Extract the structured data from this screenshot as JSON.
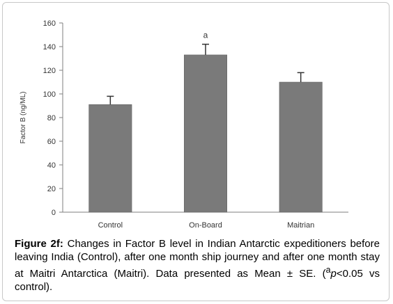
{
  "chart_data": {
    "type": "bar",
    "ylabel": "Factor B (ng/ML)",
    "xlabel": "",
    "categories": [
      "Control",
      "On-Board",
      "Maitrian"
    ],
    "values": [
      91,
      133,
      110
    ],
    "errors": [
      7,
      9,
      8
    ],
    "annotations": [
      "",
      "a",
      ""
    ],
    "ylim": [
      0,
      160
    ],
    "yticks": [
      0,
      20,
      40,
      60,
      80,
      100,
      120,
      140,
      160
    ],
    "ytick_labels": [
      "0",
      "20",
      "40",
      "60",
      "80",
      "100",
      "120",
      "140",
      "160"
    ],
    "grid": false,
    "bar_color": "#7a7a7a",
    "legend": null
  },
  "caption": {
    "label": "Figure 2f:",
    "text_before_super": " Changes in Factor B level in Indian Antarctic expeditioners before leaving India (Control), after one month ship journey and after one month stay at Maitri Antarctica (Maitri). Data presented as Mean ± SE.  (",
    "superscript": "a",
    "italic": "p",
    "text_after": "<0.05 vs control)."
  }
}
